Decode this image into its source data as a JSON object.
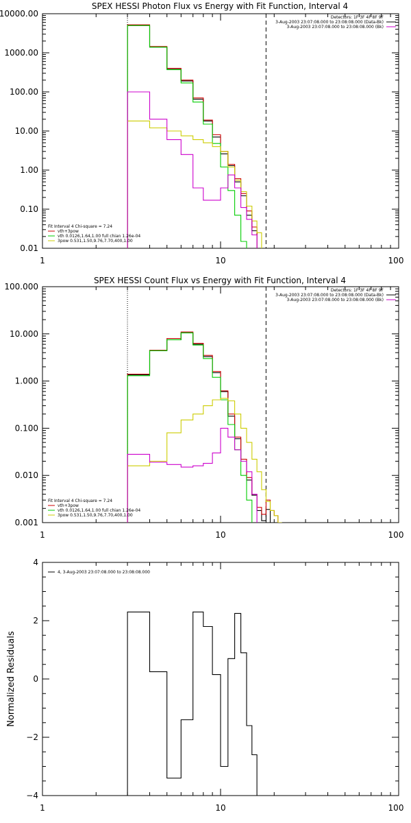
{
  "chart_data": [
    {
      "type": "line",
      "title": "SPEX HESSI Photon Flux vs Energy with Fit Function, Interval 4",
      "xscale": "log",
      "yscale": "log",
      "xlim": [
        1,
        100
      ],
      "ylim": [
        0.01,
        10000
      ],
      "xticks": [
        {
          "v": 1,
          "label": "1"
        },
        {
          "v": 10,
          "label": "10"
        },
        {
          "v": 100,
          "label": "100"
        }
      ],
      "yticks": [
        {
          "v": 10000,
          "label": "10000.00"
        },
        {
          "v": 1000,
          "label": "1000.00"
        },
        {
          "v": 100,
          "label": "100.00"
        },
        {
          "v": 10,
          "label": "10.00"
        },
        {
          "v": 1,
          "label": "1.00"
        },
        {
          "v": 0.1,
          "label": "0.10"
        },
        {
          "v": 0.01,
          "label": "0.01"
        }
      ],
      "edges": [
        3,
        4,
        5,
        6,
        7,
        8,
        9,
        10,
        11,
        12,
        13,
        14,
        15,
        16,
        17,
        18
      ],
      "vlines": [
        {
          "x": 3,
          "style": "dotted"
        },
        {
          "x": 18,
          "style": "dashed"
        }
      ],
      "info_right": [
        {
          "text": "Detectors: 1F 3F 4F 8F 9F",
          "color": ""
        },
        {
          "text": "3-Aug-2003 23:07:08.000 to 23:08:08.000 (Data-Bk)",
          "color": "#000000"
        },
        {
          "text": "3-Aug-2003 23:07:08.000 to 23:08:08.000 (Bk)",
          "color": "#cc00cc"
        }
      ],
      "legend": [
        {
          "text": "Fit Interval 4   Chi-square = 7.24",
          "color": ""
        },
        {
          "text": "vth+3pow",
          "color": "#cc0000"
        },
        {
          "text": "vth 0.0126,1.64,1.00  full chian 1.26e-04",
          "color": "#00cc00"
        },
        {
          "text": "3pow 0.531,1.50,9.76,7.70,400,1.00",
          "color": "#cccc00"
        }
      ],
      "series": [
        {
          "name": "Data-Bk",
          "color": "#000000",
          "values": [
            5000,
            1400,
            380,
            190,
            65,
            18,
            7,
            2.6,
            1.3,
            0.5,
            0.22,
            0.07,
            0.028,
            null,
            null
          ]
        },
        {
          "name": "vth+3pow",
          "color": "#cc0000",
          "values": [
            5200,
            1450,
            400,
            200,
            70,
            19,
            8,
            3.0,
            1.4,
            0.6,
            0.25,
            0.09,
            0.035,
            null,
            null
          ]
        },
        {
          "name": "vth",
          "color": "#00cc00",
          "values": [
            5000,
            1400,
            370,
            170,
            55,
            15,
            4.8,
            1.2,
            0.3,
            0.07,
            0.015,
            0.004,
            null,
            null,
            null
          ]
        },
        {
          "name": "3pow",
          "color": "#cccc00",
          "values": [
            18,
            12,
            10,
            7.5,
            6,
            5,
            4,
            3,
            1.2,
            0.55,
            0.28,
            0.12,
            0.05,
            0.025,
            0.008
          ]
        },
        {
          "name": "Bk",
          "color": "#cc00cc",
          "values": [
            100,
            20,
            6,
            2.5,
            0.35,
            0.17,
            0.17,
            0.35,
            0.75,
            0.35,
            0.11,
            0.055,
            0.022,
            null,
            null
          ]
        }
      ]
    },
    {
      "type": "line",
      "title": "SPEX HESSI Count Flux vs Energy with Fit Function, Interval 4",
      "xscale": "log",
      "yscale": "log",
      "xlim": [
        1,
        100
      ],
      "ylim": [
        0.001,
        100
      ],
      "xticks": [
        {
          "v": 1,
          "label": "1"
        },
        {
          "v": 10,
          "label": "10"
        },
        {
          "v": 100,
          "label": "100"
        }
      ],
      "yticks": [
        {
          "v": 100,
          "label": "100.000"
        },
        {
          "v": 10,
          "label": "10.000"
        },
        {
          "v": 1,
          "label": "1.000"
        },
        {
          "v": 0.1,
          "label": "0.100"
        },
        {
          "v": 0.01,
          "label": "0.010"
        },
        {
          "v": 0.001,
          "label": "0.001"
        }
      ],
      "edges": [
        3,
        4,
        5,
        6,
        7,
        8,
        9,
        10,
        11,
        12,
        13,
        14,
        15,
        16,
        17,
        18,
        19,
        20,
        21,
        22
      ],
      "vlines": [
        {
          "x": 3,
          "style": "dotted"
        },
        {
          "x": 18,
          "style": "dashed"
        }
      ],
      "info_right": [
        {
          "text": "Detectors: 1F 3F 4F 8F 9F",
          "color": ""
        },
        {
          "text": "3-Aug-2003 23:07:08.000 to 23:08:08.000 (Data-Bk)",
          "color": "#000000"
        },
        {
          "text": "3-Aug-2003 23:07:08.000 to 23:08:08.000 (Bk)",
          "color": "#cc00cc"
        }
      ],
      "legend": [
        {
          "text": "Fit Interval 4   Chi-square = 7.24",
          "color": ""
        },
        {
          "text": "vth+3pow",
          "color": "#cc0000"
        },
        {
          "text": "vth 0.0126,1.64,1.00  full chian 1.26e-04",
          "color": "#00cc00"
        },
        {
          "text": "3pow 0.531,1.50,9.76,7.70,400,1.00",
          "color": "#cccc00"
        }
      ],
      "series": [
        {
          "name": "Data-Bk",
          "color": "#000000",
          "values": [
            1.35,
            4.4,
            7.5,
            10.5,
            6.0,
            3.3,
            1.5,
            0.6,
            0.18,
            0.06,
            0.02,
            0.008,
            0.0038,
            0.0018,
            0.0011,
            0.0019,
            null,
            null,
            null
          ]
        },
        {
          "name": "vth+3pow",
          "color": "#cc0000",
          "values": [
            1.4,
            4.5,
            8.0,
            11.0,
            6.3,
            3.5,
            1.6,
            0.62,
            0.2,
            0.065,
            0.022,
            0.009,
            0.004,
            0.0021,
            0.0015,
            0.003,
            0.0018,
            0.0014,
            0.001
          ]
        },
        {
          "name": "vth",
          "color": "#00cc00",
          "values": [
            1.3,
            4.4,
            7.5,
            10.5,
            5.8,
            3.0,
            1.2,
            0.4,
            0.12,
            0.035,
            0.01,
            0.003,
            null,
            null,
            null,
            null,
            null,
            null,
            null
          ]
        },
        {
          "name": "3pow",
          "color": "#cccc00",
          "values": [
            0.016,
            0.02,
            0.08,
            0.15,
            0.2,
            0.3,
            0.4,
            0.43,
            0.38,
            0.2,
            0.1,
            0.05,
            0.022,
            0.012,
            0.005,
            0.0028,
            0.0018,
            0.0014,
            0.001
          ]
        },
        {
          "name": "Bk",
          "color": "#cc00cc",
          "values": [
            0.028,
            0.019,
            0.017,
            0.015,
            0.016,
            0.018,
            0.03,
            0.1,
            0.065,
            0.035,
            0.02,
            0.012,
            0.004,
            null,
            null,
            null,
            null,
            null,
            null
          ]
        }
      ]
    },
    {
      "type": "line",
      "title": "",
      "ylabel": "Normalized Residuals",
      "xscale": "log",
      "yscale": "linear",
      "xlim": [
        1,
        100
      ],
      "ylim": [
        -4,
        4
      ],
      "xticks": [
        {
          "v": 1,
          "label": "1"
        },
        {
          "v": 10,
          "label": "10"
        },
        {
          "v": 100,
          "label": "100"
        }
      ],
      "yticks": [
        {
          "v": 4,
          "label": "4"
        },
        {
          "v": 2,
          "label": "2"
        },
        {
          "v": 0,
          "label": "0"
        },
        {
          "v": -2,
          "label": "−2"
        },
        {
          "v": -4,
          "label": "−4"
        }
      ],
      "edges": [
        3,
        4,
        5,
        6,
        7,
        8,
        9,
        10,
        11,
        12,
        13,
        14,
        15,
        16,
        17,
        18
      ],
      "vlines": [],
      "info_right": [],
      "legend": [
        {
          "text": "4, 3-Aug-2003 23:07:08.000 to 23:08:08.000",
          "color": "#000000"
        }
      ],
      "series": [
        {
          "name": "residuals",
          "color": "#000000",
          "values": [
            2.3,
            0.25,
            -3.4,
            -1.4,
            2.3,
            1.8,
            0.15,
            -3.0,
            0.7,
            2.25,
            0.9,
            -1.6,
            -2.6,
            null,
            null
          ]
        }
      ]
    }
  ]
}
